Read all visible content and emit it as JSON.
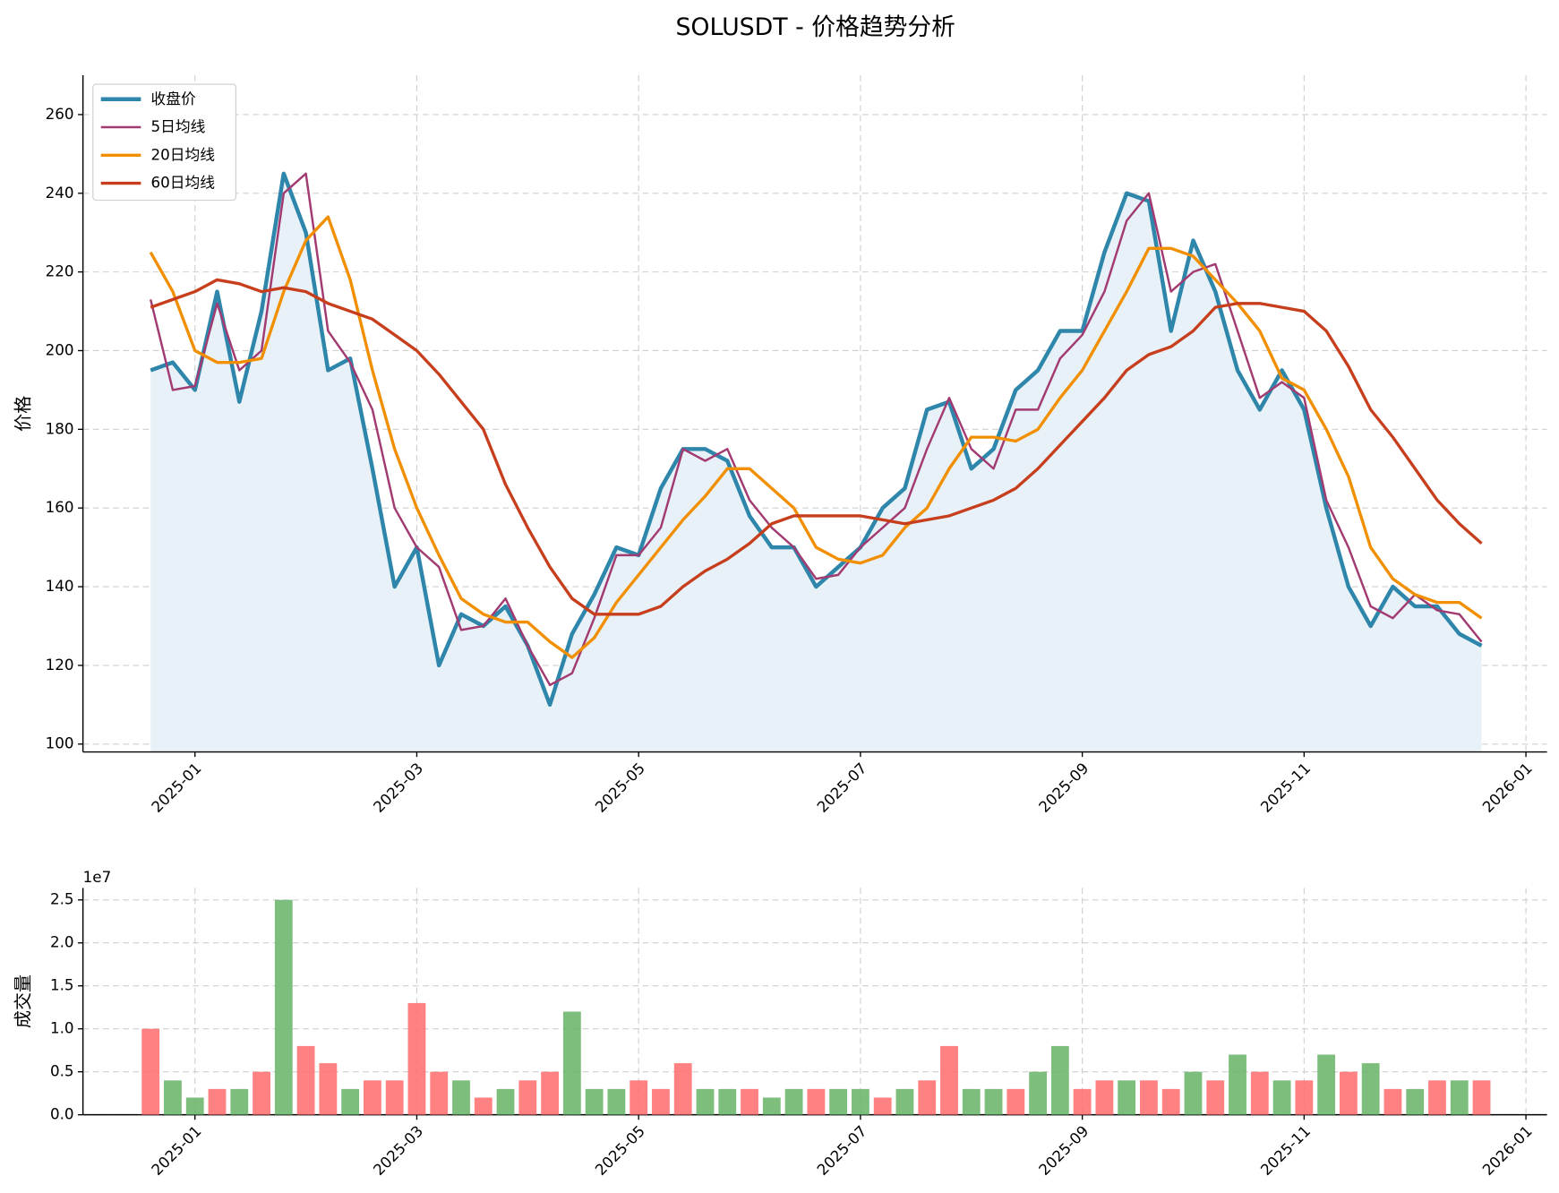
{
  "title": "SOLUSDT - 价格趋势分析",
  "chart_data": [
    {
      "type": "line",
      "ylabel": "价格",
      "x": [
        -0.4,
        -0.2,
        0.0,
        0.2,
        0.4,
        0.6,
        0.8,
        1.0,
        1.2,
        1.4,
        1.6,
        1.8,
        2.0,
        2.2,
        2.4,
        2.6,
        2.8,
        3.0,
        3.2,
        3.4,
        3.6,
        3.8,
        4.0,
        4.2,
        4.4,
        4.6,
        4.8,
        5.0,
        5.2,
        5.4,
        5.6,
        5.8,
        6.0,
        6.2,
        6.4,
        6.6,
        6.8,
        7.0,
        7.2,
        7.4,
        7.6,
        7.8,
        8.0,
        8.2,
        8.4,
        8.6,
        8.8,
        9.0,
        9.2,
        9.4,
        9.6,
        9.8,
        10.0,
        10.2,
        10.4,
        10.6,
        10.8,
        11.0,
        11.2,
        11.4,
        11.6
      ],
      "series": [
        {
          "name": "收盘价",
          "color": "#2e86ab",
          "width": 4,
          "fill": "#e8f1f7",
          "values": [
            195,
            197,
            190,
            215,
            187,
            210,
            245,
            230,
            195,
            198,
            170,
            140,
            150,
            120,
            133,
            130,
            135,
            125,
            110,
            128,
            138,
            150,
            148,
            165,
            175,
            175,
            172,
            158,
            150,
            150,
            140,
            145,
            150,
            160,
            165,
            185,
            187,
            170,
            175,
            190,
            195,
            205,
            205,
            225,
            240,
            238,
            205,
            228,
            215,
            195,
            185,
            195,
            185,
            160,
            140,
            130,
            140,
            135,
            135,
            128,
            125
          ]
        },
        {
          "name": "5日均线",
          "color": "#a23b72",
          "width": 2.2,
          "values": [
            213,
            190,
            191,
            212,
            195,
            200,
            240,
            245,
            205,
            197,
            185,
            160,
            150,
            145,
            129,
            130,
            137,
            125,
            115,
            118,
            132,
            148,
            148,
            155,
            175,
            172,
            175,
            162,
            155,
            150,
            142,
            143,
            150,
            155,
            160,
            175,
            188,
            175,
            170,
            185,
            185,
            198,
            204,
            215,
            233,
            240,
            215,
            220,
            222,
            205,
            188,
            192,
            188,
            162,
            150,
            135,
            132,
            138,
            134,
            133,
            126
          ]
        },
        {
          "name": "20日均线",
          "color": "#f18f01",
          "width": 3,
          "values": [
            225,
            215,
            200,
            197,
            197,
            198,
            215,
            228,
            234,
            218,
            195,
            175,
            160,
            148,
            137,
            133,
            131,
            131,
            126,
            122,
            127,
            136,
            143,
            150,
            157,
            163,
            170,
            170,
            165,
            160,
            150,
            147,
            146,
            148,
            155,
            160,
            170,
            178,
            178,
            177,
            180,
            188,
            195,
            205,
            215,
            226,
            226,
            224,
            218,
            212,
            205,
            193,
            190,
            180,
            168,
            150,
            142,
            138,
            136,
            136,
            132
          ]
        },
        {
          "name": "60日均线",
          "color": "#c73e1d",
          "width": 3,
          "values": [
            211,
            213,
            215,
            218,
            217,
            215,
            216,
            215,
            212,
            210,
            208,
            204,
            200,
            194,
            187,
            180,
            166,
            155,
            145,
            137,
            133,
            133,
            133,
            135,
            140,
            144,
            147,
            151,
            156,
            158,
            158,
            158,
            158,
            157,
            156,
            157,
            158,
            160,
            162,
            165,
            170,
            176,
            182,
            188,
            195,
            199,
            201,
            205,
            211,
            212,
            212,
            211,
            210,
            205,
            196,
            185,
            178,
            170,
            162,
            156,
            151
          ]
        }
      ],
      "xlim": [
        -1.01,
        12.19
      ],
      "ylim": [
        98,
        270
      ],
      "xticks": [
        {
          "value": 0,
          "label": "2025-01"
        },
        {
          "value": 2,
          "label": "2025-03"
        },
        {
          "value": 4,
          "label": "2025-05"
        },
        {
          "value": 6,
          "label": "2025-07"
        },
        {
          "value": 8,
          "label": "2025-09"
        },
        {
          "value": 10,
          "label": "2025-11"
        },
        {
          "value": 12,
          "label": "2026-01"
        }
      ],
      "yticks": [
        100,
        120,
        140,
        160,
        180,
        200,
        220,
        240,
        260
      ],
      "grid": true,
      "legend": "upper left"
    },
    {
      "type": "bar",
      "ylabel": "成交量",
      "offset_label": "1e7",
      "x": [
        -0.4,
        -0.2,
        0.0,
        0.2,
        0.4,
        0.6,
        0.8,
        1.0,
        1.2,
        1.4,
        1.6,
        1.8,
        2.0,
        2.2,
        2.4,
        2.6,
        2.8,
        3.0,
        3.2,
        3.4,
        3.6,
        3.8,
        4.0,
        4.2,
        4.4,
        4.6,
        4.8,
        5.0,
        5.2,
        5.4,
        5.6,
        5.8,
        6.0,
        6.2,
        6.4,
        6.6,
        6.8,
        7.0,
        7.2,
        7.4,
        7.6,
        7.8,
        8.0,
        8.2,
        8.4,
        8.6,
        8.8,
        9.0,
        9.2,
        9.4,
        9.6,
        9.8,
        10.0,
        10.2,
        10.4,
        10.6,
        10.8,
        11.0,
        11.2,
        11.4,
        11.6
      ],
      "values": [
        10000000,
        4000000,
        2000000,
        3000000,
        3000000,
        5000000,
        25000000,
        8000000,
        6000000,
        3000000,
        4000000,
        4000000,
        13000000,
        5000000,
        4000000,
        2000000,
        3000000,
        4000000,
        5000000,
        12000000,
        3000000,
        3000000,
        4000000,
        3000000,
        6000000,
        3000000,
        3000000,
        3000000,
        2000000,
        3000000,
        3000000,
        3000000,
        3000000,
        2000000,
        3000000,
        4000000,
        8000000,
        3000000,
        3000000,
        3000000,
        5000000,
        8000000,
        3000000,
        4000000,
        4000000,
        4000000,
        3000000,
        5000000,
        4000000,
        7000000,
        5000000,
        4000000,
        4000000,
        7000000,
        5000000,
        6000000,
        3000000,
        3000000,
        4000000,
        4000000,
        4000000
      ],
      "colors": [
        "#ff6b6b",
        "#66b366",
        "#66b366",
        "#ff6b6b",
        "#66b366",
        "#ff6b6b",
        "#66b366",
        "#ff6b6b",
        "#ff6b6b",
        "#66b366",
        "#ff6b6b",
        "#ff6b6b",
        "#ff6b6b",
        "#ff6b6b",
        "#66b366",
        "#ff6b6b",
        "#66b366",
        "#ff6b6b",
        "#ff6b6b",
        "#66b366",
        "#66b366",
        "#66b366",
        "#ff6b6b",
        "#ff6b6b",
        "#ff6b6b",
        "#66b366",
        "#66b366",
        "#ff6b6b",
        "#66b366",
        "#66b366",
        "#ff6b6b",
        "#66b366",
        "#66b366",
        "#ff6b6b",
        "#66b366",
        "#ff6b6b",
        "#ff6b6b",
        "#66b366",
        "#66b366",
        "#ff6b6b",
        "#66b366",
        "#66b366",
        "#ff6b6b",
        "#ff6b6b",
        "#66b366",
        "#ff6b6b",
        "#ff6b6b",
        "#66b366",
        "#ff6b6b",
        "#66b366",
        "#ff6b6b",
        "#66b366",
        "#ff6b6b",
        "#66b366",
        "#ff6b6b",
        "#66b366",
        "#ff6b6b",
        "#66b366",
        "#ff6b6b",
        "#66b366",
        "#ff6b6b"
      ],
      "xlim": [
        -1.01,
        12.19
      ],
      "ylim": [
        0,
        26400000
      ],
      "xticks": [
        {
          "value": 0,
          "label": "2025-01"
        },
        {
          "value": 2,
          "label": "2025-03"
        },
        {
          "value": 4,
          "label": "2025-05"
        },
        {
          "value": 6,
          "label": "2025-07"
        },
        {
          "value": 8,
          "label": "2025-09"
        },
        {
          "value": 10,
          "label": "2025-11"
        },
        {
          "value": 12,
          "label": "2026-01"
        }
      ],
      "yticks": [
        {
          "value": 0,
          "label": "0.0"
        },
        {
          "value": 5000000,
          "label": "0.5"
        },
        {
          "value": 10000000,
          "label": "1.0"
        },
        {
          "value": 15000000,
          "label": "1.5"
        },
        {
          "value": 20000000,
          "label": "2.0"
        },
        {
          "value": 25000000,
          "label": "2.5"
        }
      ],
      "grid": true
    }
  ]
}
